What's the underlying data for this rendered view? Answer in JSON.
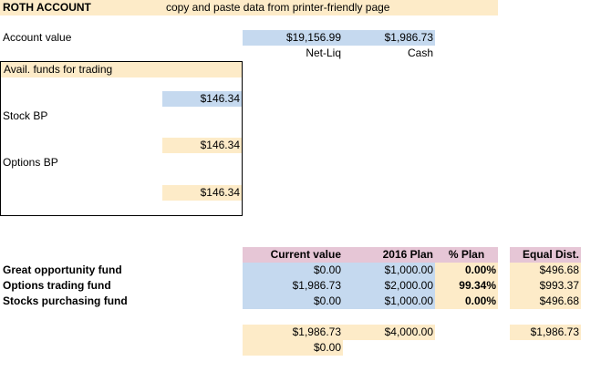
{
  "header": {
    "title": "ROTH ACCOUNT",
    "instruction": "copy and paste data from printer-friendly page"
  },
  "account": {
    "label": "Account value",
    "net_liq": "$19,156.99",
    "cash": "$1,986.73",
    "net_liq_label": "Net-Liq",
    "cash_label": "Cash"
  },
  "funds_box": {
    "title": "Avail. funds for trading",
    "value1": "$146.34",
    "stock_bp_label": "Stock BP",
    "value2": "$146.34",
    "options_bp_label": "Options BP",
    "value3": "$146.34"
  },
  "table": {
    "headers": [
      "Current value",
      "2016 Plan",
      "% Plan",
      "Equal Dist."
    ],
    "rows": [
      {
        "name": "Great opportunity fund",
        "current": "$0.00",
        "plan": "$1,000.00",
        "pct": "0.00%",
        "equal": "$496.68"
      },
      {
        "name": "Options trading fund",
        "current": "$1,986.73",
        "plan": "$2,000.00",
        "pct": "99.34%",
        "equal": "$993.37"
      },
      {
        "name": "Stocks purchasing fund",
        "current": "$0.00",
        "plan": "$1,000.00",
        "pct": "0.00%",
        "equal": "$496.68"
      }
    ],
    "totals": {
      "current": "$1,986.73",
      "plan": "$4,000.00",
      "equal": "$1,986.73"
    },
    "difference": "$0.00"
  }
}
